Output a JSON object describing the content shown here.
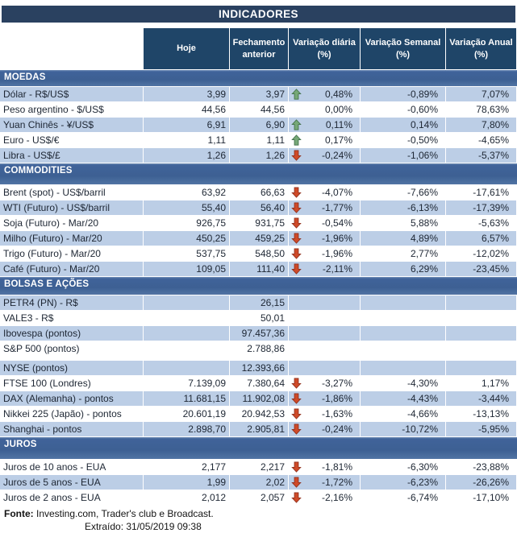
{
  "title": "INDICADORES",
  "columns": [
    "Hoje",
    "Fechamento anterior",
    "Variação diária (%)",
    "Variação Semanal (%)",
    "Variação Anual (%)"
  ],
  "colors": {
    "title_bar": "#2a4160",
    "column_header": "#1f4568",
    "section_bar": "#3d6093",
    "stripe_row": "#bccee6",
    "arrow_up": "#76a877",
    "arrow_down": "#cf4a28"
  },
  "icons": {
    "up": "arrow-up-icon",
    "down": "arrow-down-icon"
  },
  "sections": [
    {
      "name": "MOEDAS",
      "rows": [
        {
          "label": "Dólar - R$/US$",
          "hoje": "3,99",
          "fech": "3,97",
          "arrow": "up",
          "dia": "0,48%",
          "sem": "-0,89%",
          "ano": "7,07%",
          "shade": true
        },
        {
          "label": "Peso argentino - $/US$",
          "hoje": "44,56",
          "fech": "44,56",
          "arrow": "",
          "dia": "0,00%",
          "sem": "-0,60%",
          "ano": "78,63%",
          "shade": false
        },
        {
          "label": "Yuan Chinês - ¥/US$",
          "hoje": "6,91",
          "fech": "6,90",
          "arrow": "up",
          "dia": "0,11%",
          "sem": "0,14%",
          "ano": "7,80%",
          "shade": true
        },
        {
          "label": "Euro - US$/€",
          "hoje": "1,11",
          "fech": "1,11",
          "arrow": "up",
          "dia": "0,17%",
          "sem": "-0,50%",
          "ano": "-4,65%",
          "shade": false
        },
        {
          "label": "Libra - US$/£",
          "hoje": "1,26",
          "fech": "1,26",
          "arrow": "down",
          "dia": "-0,24%",
          "sem": "-1,06%",
          "ano": "-5,37%",
          "shade": true
        }
      ]
    },
    {
      "name": "COMMODITIES",
      "rows": [
        {
          "label": "Brent (spot) - US$/barril",
          "hoje": "63,92",
          "fech": "66,63",
          "arrow": "down",
          "dia": "-4,07%",
          "sem": "-7,66%",
          "ano": "-17,61%",
          "shade": false
        },
        {
          "label": "WTI (Futuro) - US$/barril",
          "hoje": "55,40",
          "fech": "56,40",
          "arrow": "down",
          "dia": "-1,77%",
          "sem": "-6,13%",
          "ano": "-17,39%",
          "shade": true
        },
        {
          "label": "Soja (Futuro) - Mar/20",
          "hoje": "926,75",
          "fech": "931,75",
          "arrow": "down",
          "dia": "-0,54%",
          "sem": "5,88%",
          "ano": "-5,63%",
          "shade": false
        },
        {
          "label": "Milho (Futuro) - Mar/20",
          "hoje": "450,25",
          "fech": "459,25",
          "arrow": "down",
          "dia": "-1,96%",
          "sem": "4,89%",
          "ano": "6,57%",
          "shade": true
        },
        {
          "label": "Trigo (Futuro) - Mar/20",
          "hoje": "537,75",
          "fech": "548,50",
          "arrow": "down",
          "dia": "-1,96%",
          "sem": "2,77%",
          "ano": "-12,02%",
          "shade": false
        },
        {
          "label": "Café (Futuro) - Mar/20",
          "hoje": "109,05",
          "fech": "111,40",
          "arrow": "down",
          "dia": "-2,11%",
          "sem": "6,29%",
          "ano": "-23,45%",
          "shade": true
        }
      ]
    },
    {
      "name": "BOLSAS E AÇÕES",
      "rows": [
        {
          "label": "PETR4 (PN) - R$",
          "hoje": "",
          "fech": "26,15",
          "arrow": "",
          "dia": "",
          "sem": "",
          "ano": "",
          "shade": true
        },
        {
          "label": "VALE3 - R$",
          "hoje": "",
          "fech": "50,01",
          "arrow": "",
          "dia": "",
          "sem": "",
          "ano": "",
          "shade": false
        },
        {
          "label": "Ibovespa (pontos)",
          "hoje": "",
          "fech": "97.457,36",
          "arrow": "",
          "dia": "",
          "sem": "",
          "ano": "",
          "shade": true
        },
        {
          "label": "S&P 500 (pontos)",
          "hoje": "",
          "fech": "2.788,86",
          "arrow": "",
          "dia": "",
          "sem": "",
          "ano": "",
          "shade": false
        },
        {
          "spacer": true
        },
        {
          "label": "NYSE (pontos)",
          "hoje": "",
          "fech": "12.393,66",
          "arrow": "",
          "dia": "",
          "sem": "",
          "ano": "",
          "shade": true
        },
        {
          "label": "FTSE 100 (Londres)",
          "hoje": "7.139,09",
          "fech": "7.380,64",
          "arrow": "down",
          "dia": "-3,27%",
          "sem": "-4,30%",
          "ano": "1,17%",
          "shade": false
        },
        {
          "label": "DAX (Alemanha) - pontos",
          "hoje": "11.681,15",
          "fech": "11.902,08",
          "arrow": "down",
          "dia": "-1,86%",
          "sem": "-4,43%",
          "ano": "-3,44%",
          "shade": true
        },
        {
          "label": "Nikkei 225 (Japão) - pontos",
          "hoje": "20.601,19",
          "fech": "20.942,53",
          "arrow": "down",
          "dia": "-1,63%",
          "sem": "-4,66%",
          "ano": "-13,13%",
          "shade": false
        },
        {
          "label": "Shanghai - pontos",
          "hoje": "2.898,70",
          "fech": "2.905,81",
          "arrow": "down",
          "dia": "-0,24%",
          "sem": "-10,72%",
          "ano": "-5,95%",
          "shade": true
        }
      ]
    },
    {
      "name": "JUROS",
      "rows": [
        {
          "label": "Juros de 10 anos - EUA",
          "hoje": "2,177",
          "fech": "2,217",
          "arrow": "down",
          "dia": "-1,81%",
          "sem": "-6,30%",
          "ano": "-23,88%",
          "shade": false
        },
        {
          "label": "Juros de 5 anos - EUA",
          "hoje": "1,99",
          "fech": "2,02",
          "arrow": "down",
          "dia": "-1,72%",
          "sem": "-6,23%",
          "ano": "-26,26%",
          "shade": true
        },
        {
          "label": "Juros de 2 anos - EUA",
          "hoje": "2,012",
          "fech": "2,057",
          "arrow": "down",
          "dia": "-2,16%",
          "sem": "-6,74%",
          "ano": "-17,10%",
          "shade": false
        }
      ]
    }
  ],
  "footer": {
    "fonte_label": "Fonte:",
    "fonte_text": " Investing.com, Trader's club e Broadcast.",
    "extraido": "Extraído: 31/05/2019 09:38"
  }
}
